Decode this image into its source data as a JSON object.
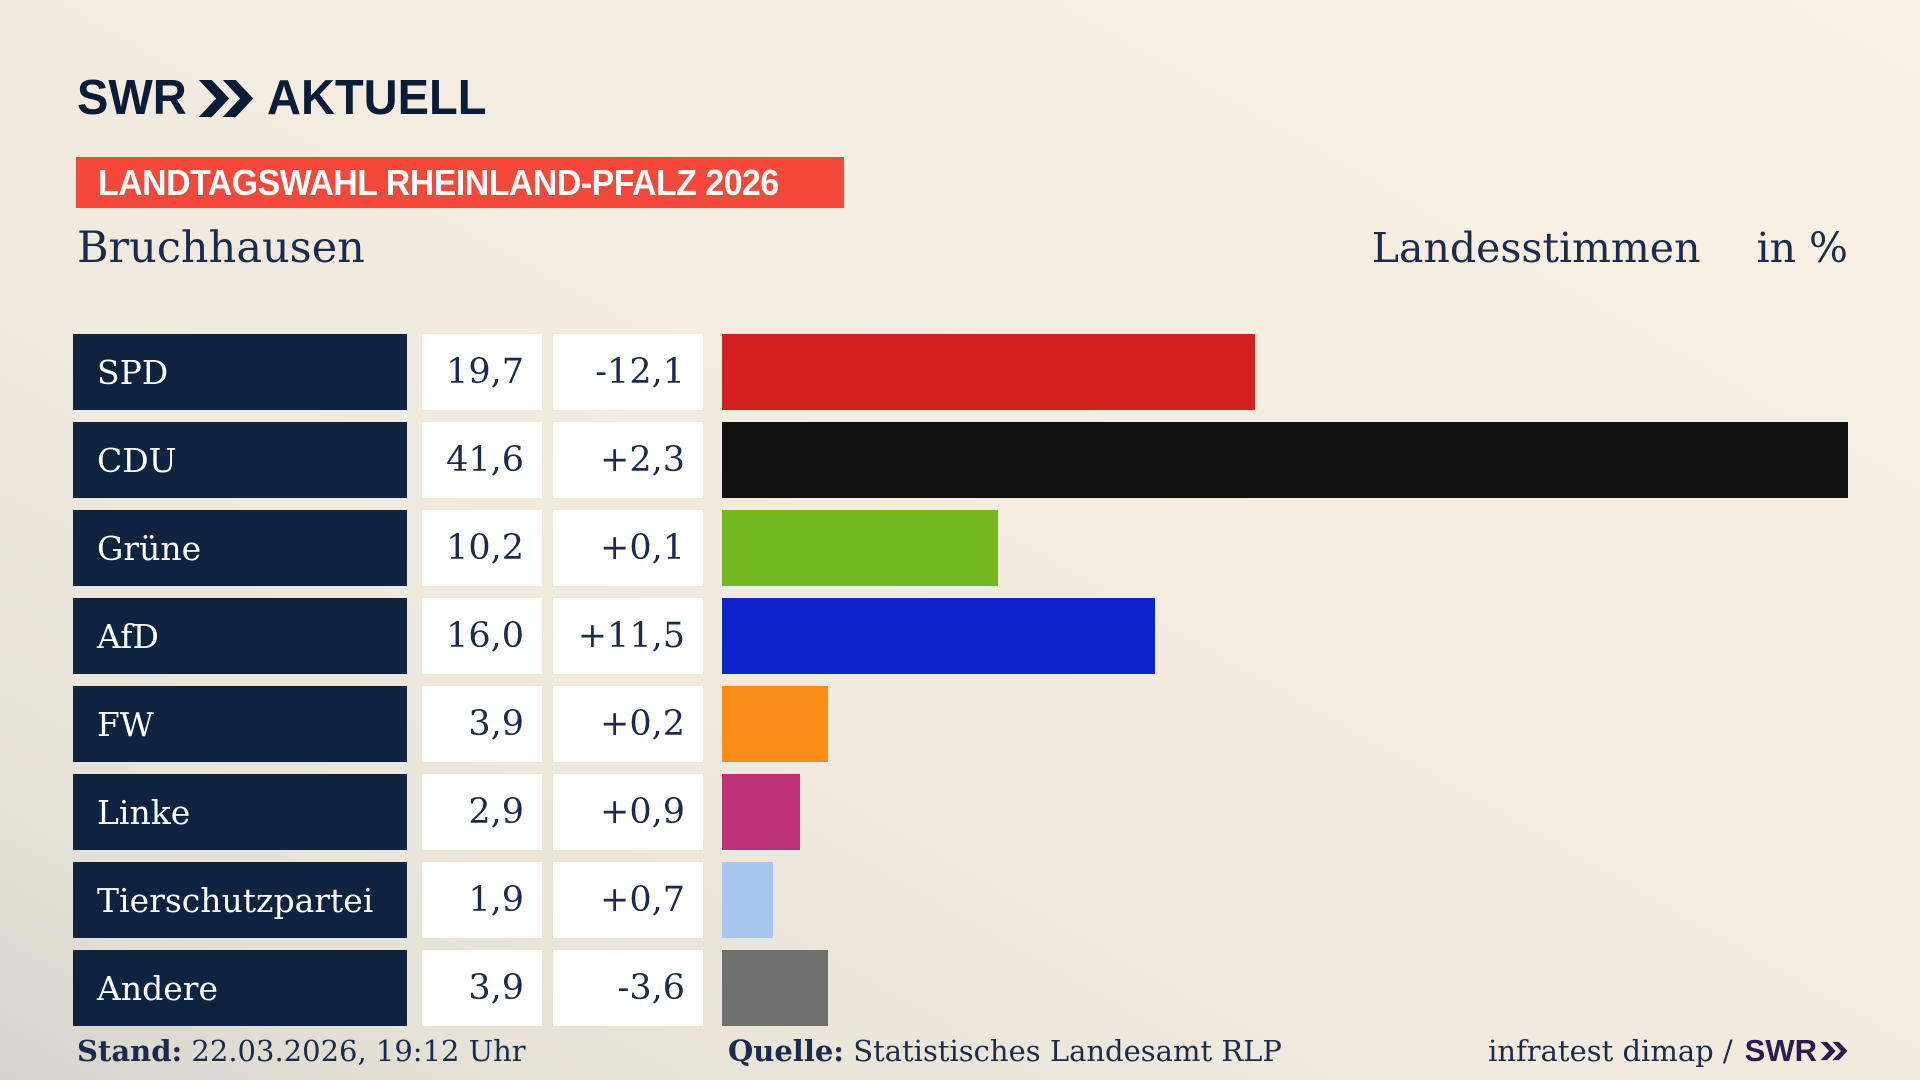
{
  "logo": {
    "brand": "SWR",
    "product": "AKTUELL"
  },
  "banner": {
    "label": "LANDTAGSWAHL RHEINLAND-PFALZ 2026"
  },
  "chart_data": {
    "type": "bar",
    "orientation": "horizontal",
    "title": "Bruchhausen",
    "value_label": "Landesstimmen",
    "unit_label": "in %",
    "xlim": [
      0,
      41.6
    ],
    "grid": false,
    "categories": [
      "SPD",
      "CDU",
      "Grüne",
      "AfD",
      "FW",
      "Linke",
      "Tierschutzpartei",
      "Andere"
    ],
    "parties": [
      {
        "name": "SPD",
        "value": 19.7,
        "value_display": "19,7",
        "change_display": "-12,1",
        "color": "#d2211f"
      },
      {
        "name": "CDU",
        "value": 41.6,
        "value_display": "41,6",
        "change_display": "+2,3",
        "color": "#121212"
      },
      {
        "name": "Grüne",
        "value": 10.2,
        "value_display": "10,2",
        "change_display": "+0,1",
        "color": "#72b622"
      },
      {
        "name": "AfD",
        "value": 16.0,
        "value_display": "16,0",
        "change_display": "+11,5",
        "color": "#0d24cc"
      },
      {
        "name": "FW",
        "value": 3.9,
        "value_display": "3,9",
        "change_display": "+0,2",
        "color": "#f98b17"
      },
      {
        "name": "Linke",
        "value": 2.9,
        "value_display": "2,9",
        "change_display": "+0,9",
        "color": "#be3077"
      },
      {
        "name": "Tierschutzpartei",
        "value": 1.9,
        "value_display": "1,9",
        "change_display": "+0,7",
        "color": "#a8c6f0"
      },
      {
        "name": "Andere",
        "value": 3.9,
        "value_display": "3,9",
        "change_display": "-3,6",
        "color": "#6f6f6f"
      }
    ]
  },
  "footer": {
    "stand_label": "Stand:",
    "stand_value": "22.03.2026, 19:12 Uhr",
    "quelle_label": "Quelle:",
    "quelle_value": "Statistisches Landesamt RLP",
    "credit_text": "infratest dimap /",
    "credit_logo": "SWR"
  },
  "colors": {
    "banner": "#f4483b",
    "box": "#0e2340",
    "text": "#1a2b4d",
    "logo": "#0b1c38",
    "footerlogo": "#2a1c4e"
  }
}
